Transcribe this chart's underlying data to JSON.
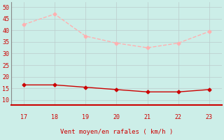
{
  "x_ticks": [
    17,
    18,
    19,
    20,
    21,
    22,
    23
  ],
  "wind_avg_x": [
    17,
    18,
    19,
    20,
    21,
    22,
    23
  ],
  "wind_avg_y": [
    16.5,
    16.5,
    15.5,
    14.5,
    13.5,
    13.5,
    14.5
  ],
  "wind_gust_x": [
    17,
    18,
    19,
    20,
    21,
    22,
    23
  ],
  "wind_gust_y": [
    42.5,
    47,
    37.5,
    34.5,
    32.5,
    34.5,
    39.5
  ],
  "ylim": [
    8,
    52
  ],
  "yticks": [
    10,
    15,
    20,
    25,
    30,
    35,
    40,
    45,
    50
  ],
  "xlim": [
    16.6,
    23.4
  ],
  "xlabel": "Vent moyen/en rafales ( km/h )",
  "avg_color": "#cc0000",
  "gust_color": "#ffb0b0",
  "bg_color": "#cceee8",
  "grid_color": "#bbcccc",
  "spine_bottom_color": "#cc0000",
  "spine_left_color": "#888888",
  "tick_color": "#cc0000",
  "label_color": "#cc0000",
  "marker_size": 2.5,
  "line_width": 1.0
}
